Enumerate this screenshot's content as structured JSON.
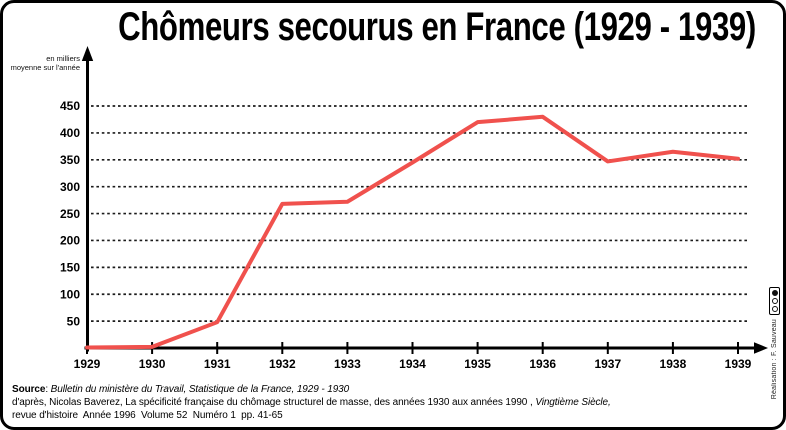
{
  "title": "Chômeurs secourus en France (1929 - 1939)",
  "y_axis_unit": {
    "line1": "en milliers",
    "line2": "moyenne sur l'année"
  },
  "chart_data": {
    "type": "line",
    "title": "Chômeurs secourus en France (1929 - 1939)",
    "ylabel": "en milliers, moyenne sur l'année",
    "xlabel": "",
    "categories": [
      "1929",
      "1930",
      "1931",
      "1932",
      "1933",
      "1934",
      "1935",
      "1936",
      "1937",
      "1938",
      "1939"
    ],
    "series": [
      {
        "name": "Chômeurs secourus (milliers, moyenne annuelle)",
        "color": "#f0514d",
        "values": [
          1,
          2,
          48,
          268,
          272,
          345,
          420,
          430,
          347,
          365,
          352
        ]
      }
    ],
    "yticks": [
      50,
      100,
      150,
      200,
      250,
      300,
      350,
      400,
      450
    ],
    "ylim": [
      0,
      480
    ],
    "grid": "horizontal-dashed",
    "legend": "none"
  },
  "source": {
    "label": "Source",
    "separator": ": ",
    "reference_italic": "Bulletin du ministère du Travail, Statistique de la France, 1929 - 1930",
    "line2_text": "d'après, Nicolas Baverez, La spécificité française du chômage structurel de masse, des années 1930 aux années 1990 , ",
    "line2_italic": "Vingtième Siècle,",
    "line3_text": "revue d'histoire  Année 1996  Volume 52  Numéro 1  pp. 41-65"
  },
  "credit": {
    "text": "Réalisation : F. Sauveau",
    "badge": "cc-license-badge"
  },
  "colors": {
    "line": "#f0514d",
    "axis": "#000000",
    "grid": "#1b1b1b",
    "background": "#ffffff",
    "border": "#000000"
  }
}
